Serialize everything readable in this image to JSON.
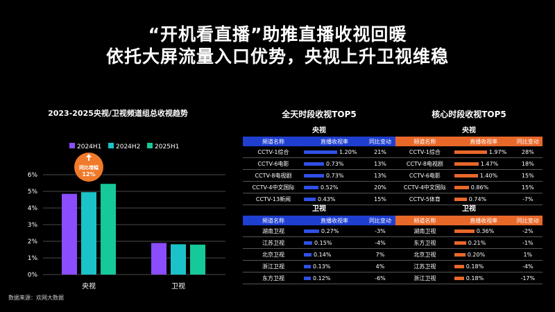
{
  "headline": {
    "line1": "“开机看直播”助推直播收视回暖",
    "line2": "依托大屏流量入口优势，央视上升卫视维稳"
  },
  "chart_data": {
    "type": "bar",
    "title": "2023-2025央视/卫视频道组总收视趋势",
    "categories": [
      "央视",
      "卫视"
    ],
    "series": [
      {
        "name": "2024H1",
        "color": "#8b4dff",
        "values": [
          4.85,
          1.9
        ]
      },
      {
        "name": "2024H2",
        "color": "#1bc3c8",
        "values": [
          4.95,
          1.82
        ]
      },
      {
        "name": "2025H1",
        "color": "#16c99a",
        "values": [
          5.45,
          1.8
        ]
      }
    ],
    "yticks": [
      "0%",
      "1%",
      "2%",
      "3%",
      "4%",
      "5%",
      "6%"
    ],
    "ylim": [
      0,
      6
    ],
    "annotation": {
      "line1": "同比增幅",
      "line2": "12%",
      "color": "#f07a2a"
    }
  },
  "all_day": {
    "title": "全天时段收视TOP5",
    "headers": [
      "频道名称",
      "直播收视率",
      "同比变动"
    ],
    "cctv": {
      "label": "央视",
      "rows": [
        {
          "name": "CCTV-1综合",
          "rating": "1.20%",
          "value": 1.2,
          "change": "21%"
        },
        {
          "name": "CCTV-6电影",
          "rating": "0.73%",
          "value": 0.73,
          "change": "13%"
        },
        {
          "name": "CCTV-8电视剧",
          "rating": "0.73%",
          "value": 0.73,
          "change": "13%"
        },
        {
          "name": "CCTV-4中文国际",
          "rating": "0.52%",
          "value": 0.52,
          "change": "20%"
        },
        {
          "name": "CCTV-13新闻",
          "rating": "0.43%",
          "value": 0.43,
          "change": "15%"
        }
      ]
    },
    "satellite": {
      "label": "卫视",
      "rows": [
        {
          "name": "湖南卫视",
          "rating": "0.27%",
          "value": 0.27,
          "change": "-3%"
        },
        {
          "name": "江苏卫视",
          "rating": "0.15%",
          "value": 0.15,
          "change": "-4%"
        },
        {
          "name": "北京卫视",
          "rating": "0.14%",
          "value": 0.14,
          "change": "7%"
        },
        {
          "name": "浙江卫视",
          "rating": "0.13%",
          "value": 0.13,
          "change": "4%"
        },
        {
          "name": "东方卫视",
          "rating": "0.12%",
          "value": 0.12,
          "change": "-6%"
        }
      ]
    }
  },
  "prime_time": {
    "title": "核心时段收视TOP5",
    "headers": [
      "频道名称",
      "直播收视率",
      "同比变动"
    ],
    "cctv": {
      "label": "央视",
      "rows": [
        {
          "name": "CCTV-1综合",
          "rating": "1.97%",
          "value": 1.97,
          "change": "28%"
        },
        {
          "name": "CCTV-8电视剧",
          "rating": "1.47%",
          "value": 1.47,
          "change": "18%"
        },
        {
          "name": "CCTV-6电影",
          "rating": "1.40%",
          "value": 1.4,
          "change": "15%"
        },
        {
          "name": "CCTV-4中文国际",
          "rating": "0.86%",
          "value": 0.86,
          "change": "15%"
        },
        {
          "name": "CCTV-5体育",
          "rating": "0.74%",
          "value": 0.74,
          "change": "-7%"
        }
      ]
    },
    "satellite": {
      "label": "卫视",
      "rows": [
        {
          "name": "湖南卫视",
          "rating": "0.36%",
          "value": 0.36,
          "change": "-2%"
        },
        {
          "name": "东方卫视",
          "rating": "0.21%",
          "value": 0.21,
          "change": "-1%"
        },
        {
          "name": "北京卫视",
          "rating": "0.20%",
          "value": 0.2,
          "change": "1%"
        },
        {
          "name": "江苏卫视",
          "rating": "0.18%",
          "value": 0.18,
          "change": "-4%"
        },
        {
          "name": "浙江卫视",
          "rating": "0.18%",
          "value": 0.18,
          "change": "-17%"
        }
      ]
    }
  },
  "source": "数据来源：欢网大数据"
}
